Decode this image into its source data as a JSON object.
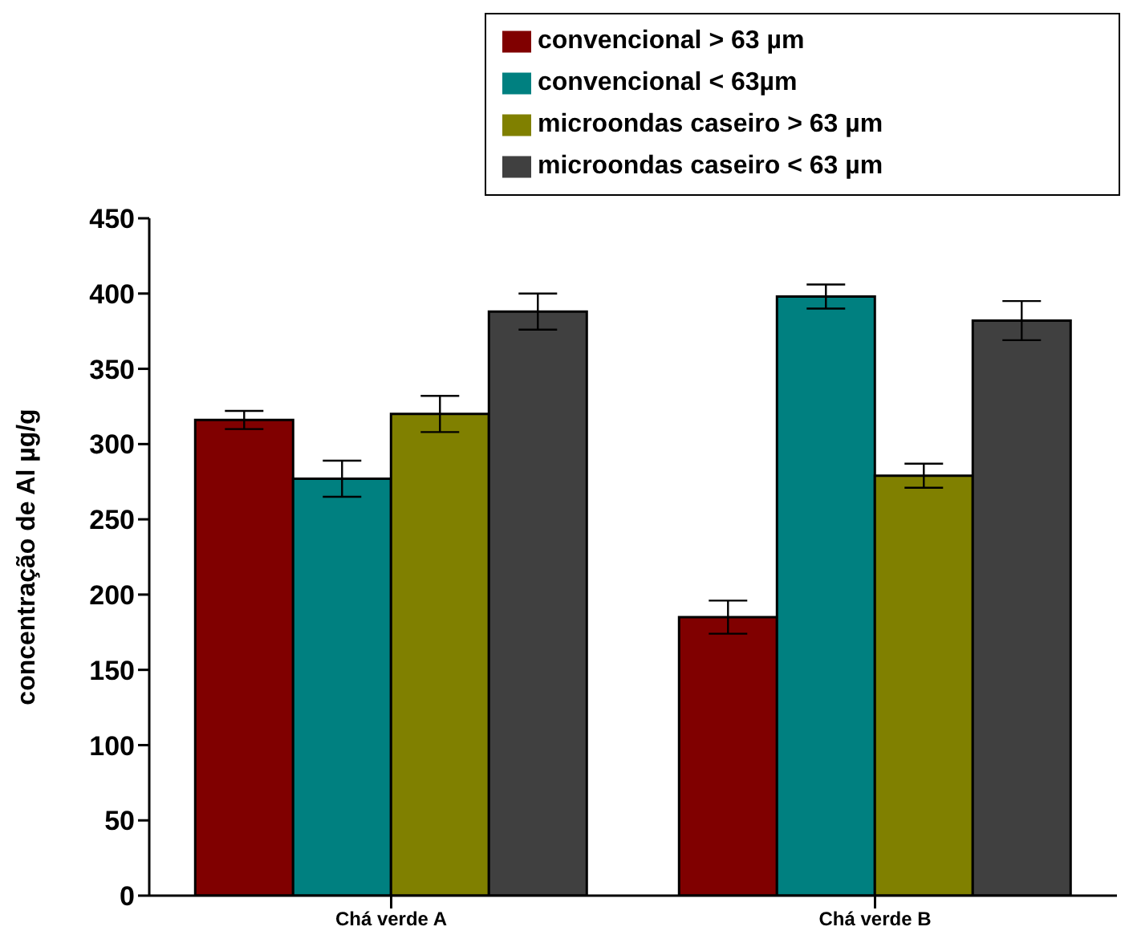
{
  "chart_data": {
    "type": "bar",
    "ylabel": "concentração de Al µg/g",
    "categories": [
      "Chá verde A",
      "Chá verde B"
    ],
    "series": [
      {
        "name": "convencional > 63 µm",
        "color": "#800000",
        "values": [
          316,
          185
        ],
        "errors": [
          6,
          11
        ]
      },
      {
        "name": "convencional < 63µm",
        "color": "#008080",
        "values": [
          277,
          398
        ],
        "errors": [
          12,
          8
        ]
      },
      {
        "name": "microondas caseiro > 63 µm",
        "color": "#808000",
        "values": [
          320,
          279
        ],
        "errors": [
          12,
          8
        ]
      },
      {
        "name": "microondas caseiro < 63 µm",
        "color": "#404040",
        "values": [
          388,
          382
        ],
        "errors": [
          12,
          13
        ]
      }
    ],
    "ylim": [
      0,
      450
    ],
    "yticks": [
      0,
      50,
      100,
      150,
      200,
      250,
      300,
      350,
      400,
      450
    ],
    "grid": false,
    "legend": "top right"
  }
}
